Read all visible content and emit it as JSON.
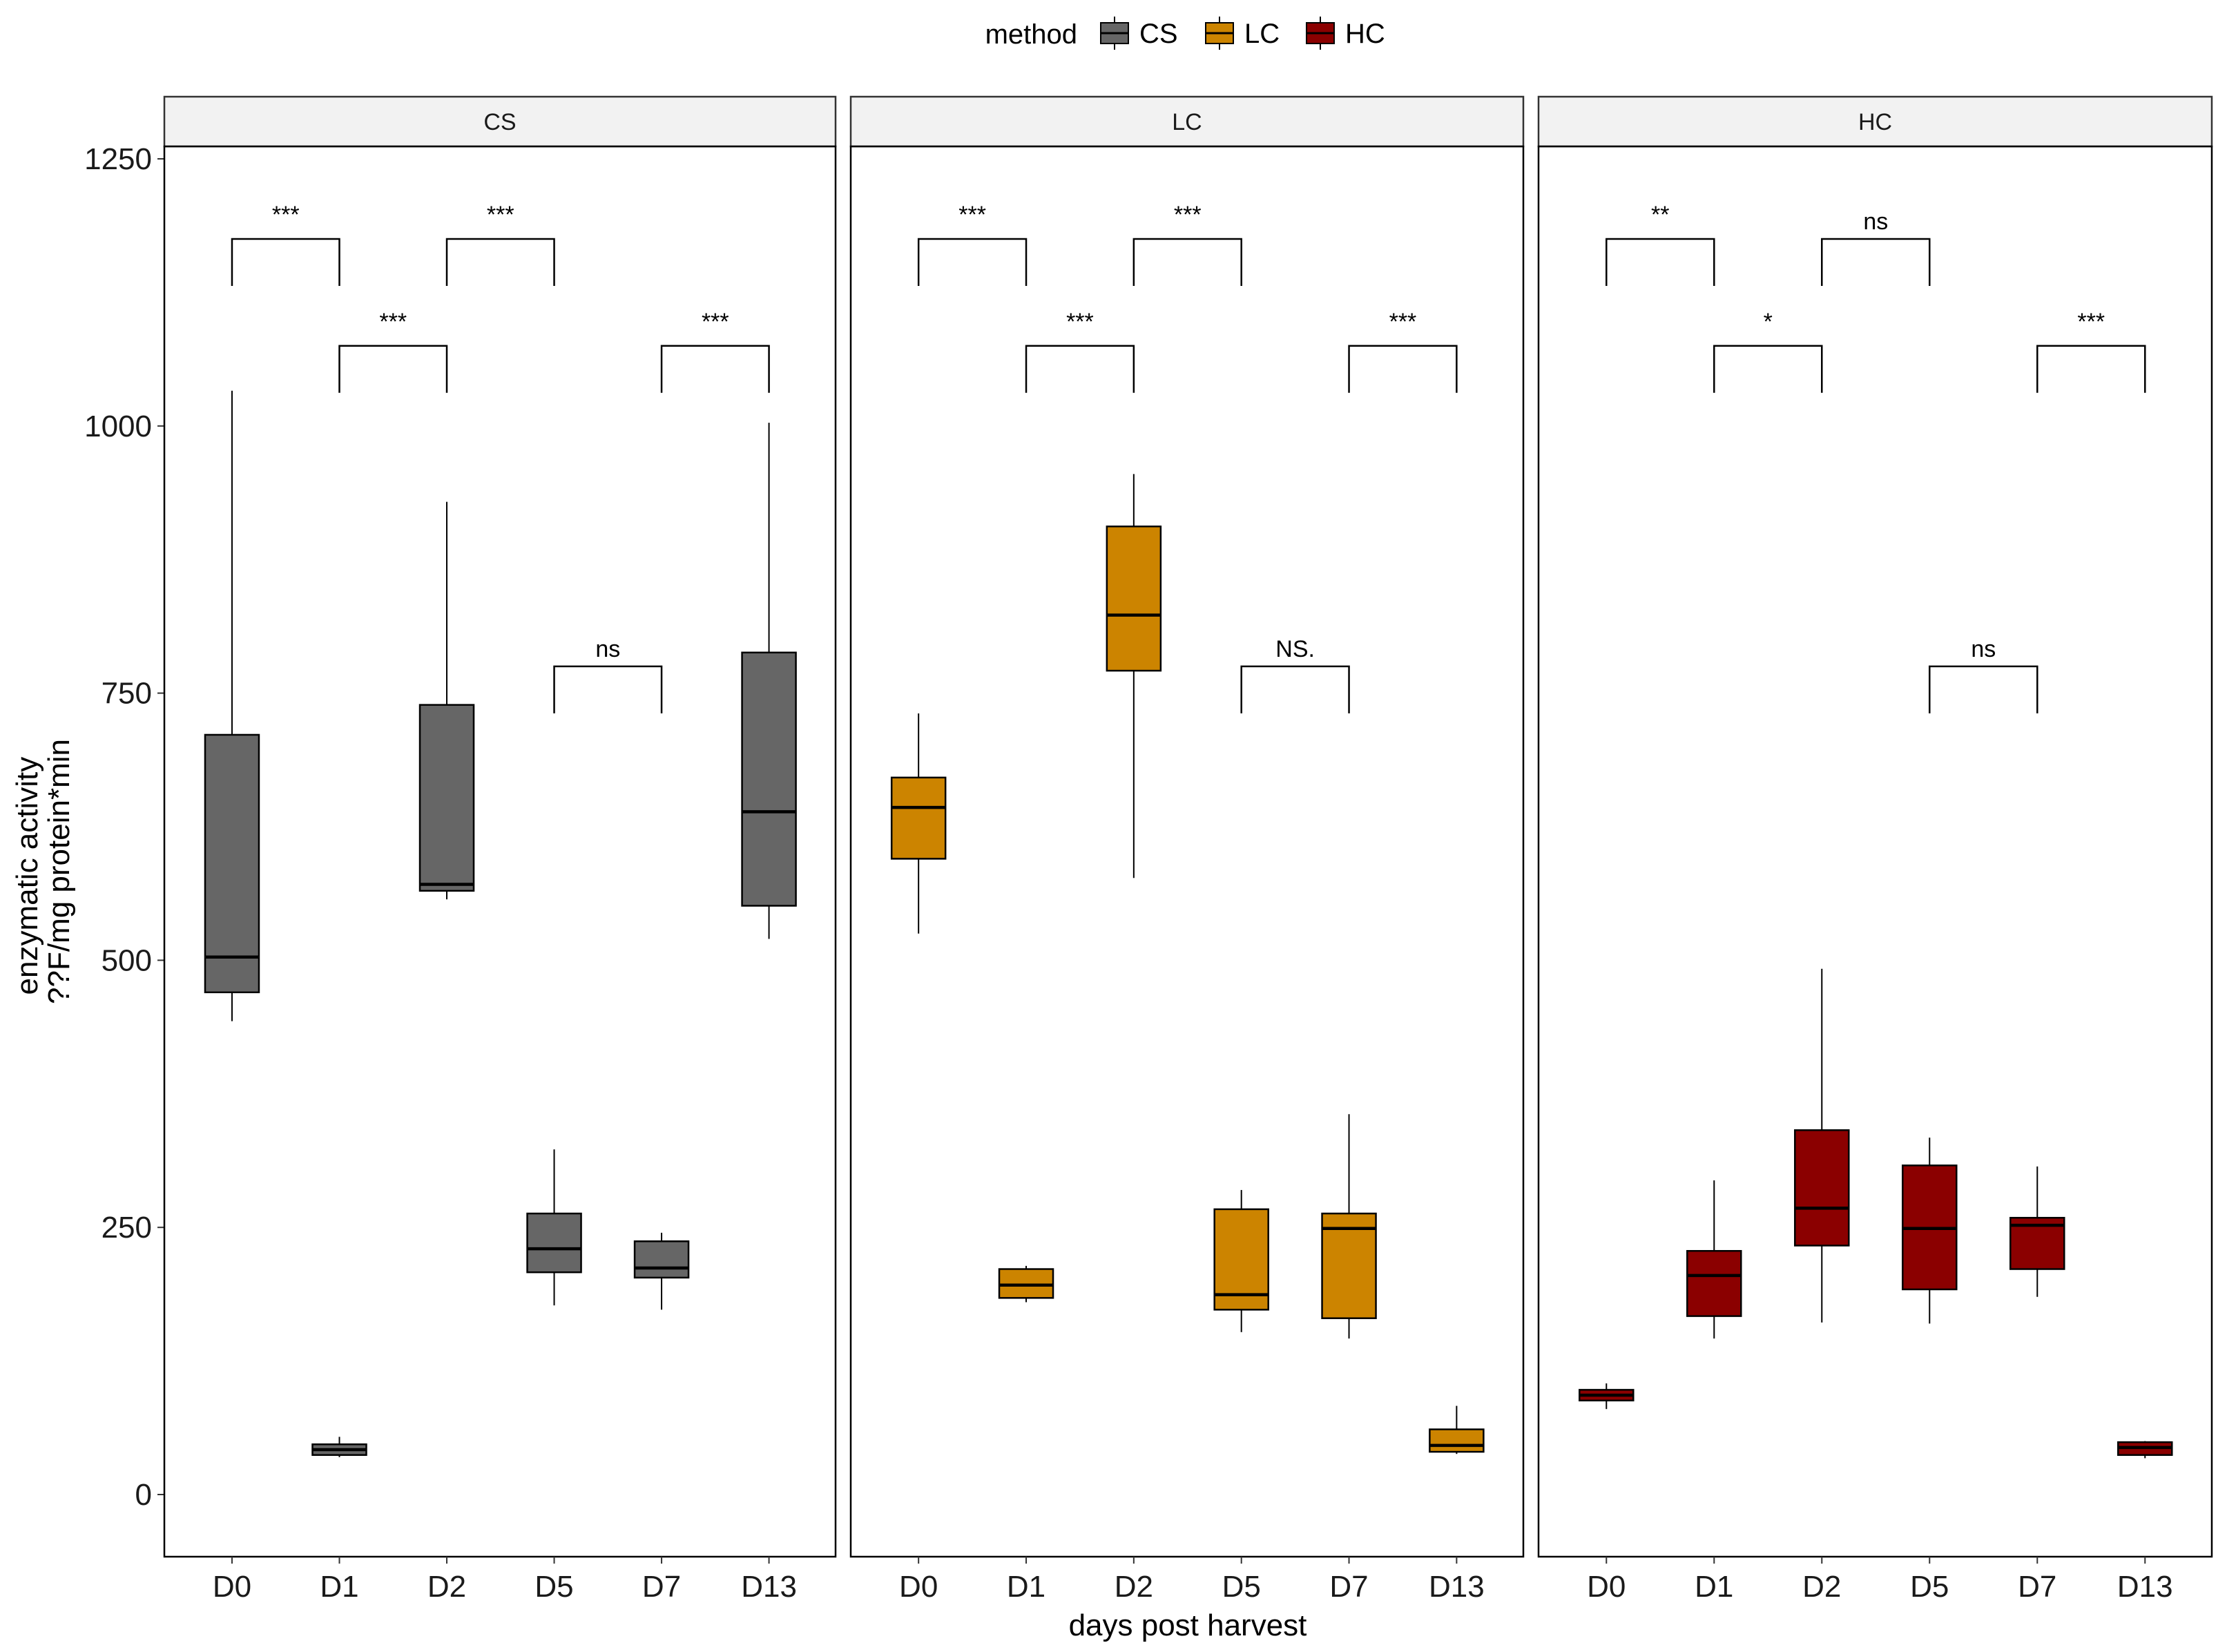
{
  "chart_data": {
    "type": "boxplot",
    "legend": {
      "title": "method",
      "position": "top",
      "entries": [
        {
          "label": "CS",
          "color": "#666666"
        },
        {
          "label": "LC",
          "color": "#CC8400"
        },
        {
          "label": "HC",
          "color": "#8B0000"
        }
      ]
    },
    "x_title": "days post harvest",
    "y_title_line1": "enzymatic activity",
    "y_title_line2": "??F/mg protein*min",
    "ylim": [
      -60,
      1310
    ],
    "y_ticks": [
      0,
      250,
      500,
      750,
      1000,
      1250
    ],
    "y_tick_labels": [
      "0",
      "250",
      "500",
      "750",
      "1000",
      "1250"
    ],
    "categories": [
      "D0",
      "D1",
      "D2",
      "D5",
      "D7",
      "D13"
    ],
    "panels": [
      {
        "name": "CS",
        "color": "#666666",
        "boxes": [
          {
            "cat": "D0",
            "min": 443,
            "q1": 470,
            "median": 503,
            "q3": 711,
            "max": 1033
          },
          {
            "cat": "D1",
            "min": 35,
            "q1": 37,
            "median": 42,
            "q3": 47,
            "max": 54
          },
          {
            "cat": "D2",
            "min": 557,
            "q1": 565,
            "median": 571,
            "q3": 739,
            "max": 929
          },
          {
            "cat": "D5",
            "min": 177,
            "q1": 208,
            "median": 230,
            "q3": 263,
            "max": 323
          },
          {
            "cat": "D7",
            "min": 173,
            "q1": 203,
            "median": 212,
            "q3": 237,
            "max": 245
          },
          {
            "cat": "D13",
            "min": 520,
            "q1": 551,
            "median": 639,
            "q3": 788,
            "max": 1003
          }
        ],
        "brackets": [
          {
            "from": "D0",
            "to": "D1",
            "y": 1175,
            "label": "***"
          },
          {
            "from": "D2",
            "to": "D5",
            "y": 1175,
            "label": "***"
          },
          {
            "from": "D1",
            "to": "D2",
            "y": 1075,
            "label": "***"
          },
          {
            "from": "D7",
            "to": "D13",
            "y": 1075,
            "label": "***"
          },
          {
            "from": "D5",
            "to": "D7",
            "y": 775,
            "label": "ns"
          }
        ]
      },
      {
        "name": "LC",
        "color": "#CC8400",
        "boxes": [
          {
            "cat": "D0",
            "min": 525,
            "q1": 595,
            "median": 643,
            "q3": 671,
            "max": 731
          },
          {
            "cat": "D1",
            "min": 180,
            "q1": 184,
            "median": 196,
            "q3": 211,
            "max": 214
          },
          {
            "cat": "D2",
            "min": 577,
            "q1": 771,
            "median": 823,
            "q3": 906,
            "max": 955
          },
          {
            "cat": "D5",
            "min": 152,
            "q1": 173,
            "median": 187,
            "q3": 267,
            "max": 285
          },
          {
            "cat": "D7",
            "min": 146,
            "q1": 165,
            "median": 249,
            "q3": 263,
            "max": 356
          },
          {
            "cat": "D13",
            "min": 38,
            "q1": 40,
            "median": 46,
            "q3": 61,
            "max": 83
          }
        ],
        "brackets": [
          {
            "from": "D0",
            "to": "D1",
            "y": 1175,
            "label": "***"
          },
          {
            "from": "D2",
            "to": "D5",
            "y": 1175,
            "label": "***"
          },
          {
            "from": "D1",
            "to": "D2",
            "y": 1075,
            "label": "***"
          },
          {
            "from": "D7",
            "to": "D13",
            "y": 1075,
            "label": "***"
          },
          {
            "from": "D5",
            "to": "D7",
            "y": 775,
            "label": "NS."
          }
        ]
      },
      {
        "name": "HC",
        "color": "#8B0000",
        "boxes": [
          {
            "cat": "D0",
            "min": 80,
            "q1": 88,
            "median": 93,
            "q3": 98,
            "max": 104
          },
          {
            "cat": "D1",
            "min": 146,
            "q1": 167,
            "median": 205,
            "q3": 228,
            "max": 294
          },
          {
            "cat": "D2",
            "min": 161,
            "q1": 233,
            "median": 268,
            "q3": 341,
            "max": 492
          },
          {
            "cat": "D5",
            "min": 160,
            "q1": 192,
            "median": 249,
            "q3": 308,
            "max": 334
          },
          {
            "cat": "D7",
            "min": 185,
            "q1": 211,
            "median": 252,
            "q3": 259,
            "max": 307
          },
          {
            "cat": "D13",
            "min": 34,
            "q1": 37,
            "median": 44,
            "q3": 49,
            "max": 50
          }
        ],
        "brackets": [
          {
            "from": "D0",
            "to": "D1",
            "y": 1175,
            "label": "**"
          },
          {
            "from": "D2",
            "to": "D5",
            "y": 1175,
            "label": "ns"
          },
          {
            "from": "D1",
            "to": "D2",
            "y": 1075,
            "label": "*"
          },
          {
            "from": "D7",
            "to": "D13",
            "y": 1075,
            "label": "***"
          },
          {
            "from": "D5",
            "to": "D7",
            "y": 775,
            "label": "ns"
          }
        ]
      }
    ]
  }
}
